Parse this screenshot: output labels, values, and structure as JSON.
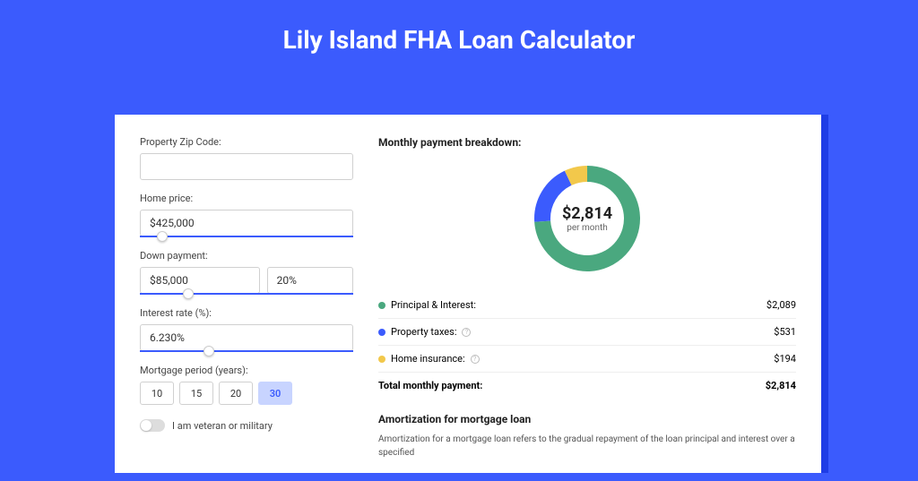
{
  "page": {
    "title": "Lily Island FHA Loan Calculator",
    "bg_color": "#3b5bfd",
    "card_shadow_color": "#1e3de6"
  },
  "form": {
    "zip": {
      "label": "Property Zip Code:",
      "value": ""
    },
    "home_price": {
      "label": "Home price:",
      "value": "$425,000",
      "slider_pct": 8
    },
    "down_payment": {
      "label": "Down payment:",
      "value": "$85,000",
      "pct_value": "20%",
      "slider_pct": 20
    },
    "interest_rate": {
      "label": "Interest rate (%):",
      "value": "6.230%",
      "slider_pct": 30
    },
    "period": {
      "label": "Mortgage period (years):",
      "options": [
        "10",
        "15",
        "20",
        "30"
      ],
      "selected": "30"
    },
    "veteran": {
      "label": "I am veteran or military",
      "value": false
    }
  },
  "breakdown": {
    "title": "Monthly payment breakdown:",
    "center_value": "$2,814",
    "center_sub": "per month",
    "items": [
      {
        "label": "Principal & Interest:",
        "value": "$2,089",
        "color": "#4aa87f",
        "pct": 74,
        "help": false
      },
      {
        "label": "Property taxes:",
        "value": "$531",
        "color": "#3b5bfd",
        "pct": 19,
        "help": true
      },
      {
        "label": "Home insurance:",
        "value": "$194",
        "color": "#f2c84b",
        "pct": 7,
        "help": true
      }
    ],
    "total": {
      "label": "Total monthly payment:",
      "value": "$2,814"
    }
  },
  "amortization": {
    "title": "Amortization for mortgage loan",
    "text": "Amortization for a mortgage loan refers to the gradual repayment of the loan principal and interest over a specified"
  },
  "donut": {
    "radius": 50,
    "stroke_width": 18,
    "bg_color": "#ffffff"
  }
}
